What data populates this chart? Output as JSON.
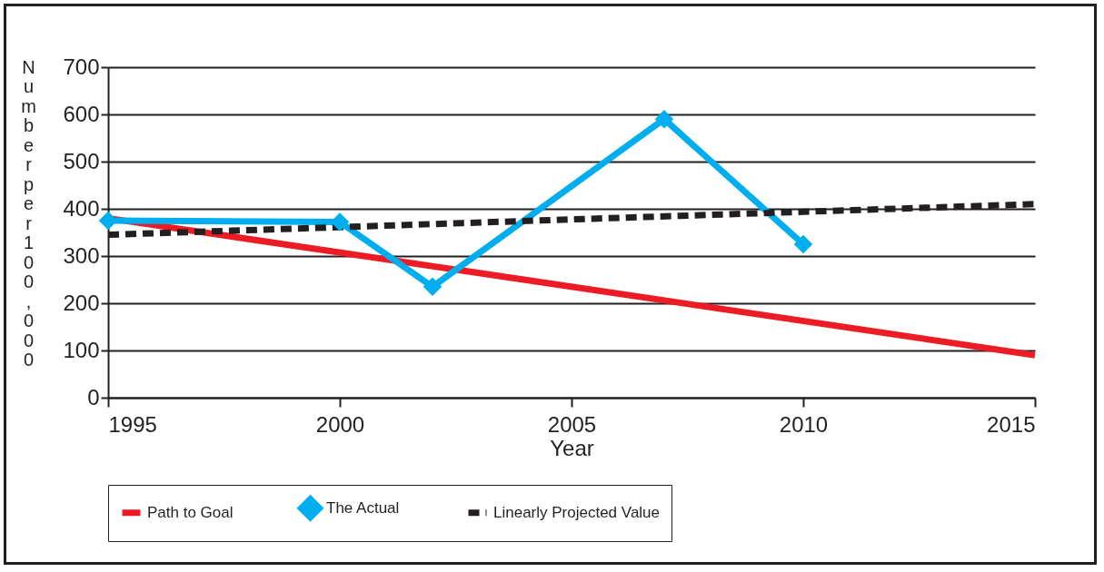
{
  "chart_data": {
    "type": "line",
    "xlabel": "Year",
    "ylabel": "Number per 100,000",
    "xlim": [
      1995,
      2015
    ],
    "xticks": [
      1995,
      2000,
      2005,
      2010,
      2015
    ],
    "ylim": [
      0,
      700
    ],
    "yticks": [
      0,
      100,
      200,
      300,
      400,
      500,
      600,
      700
    ],
    "grid": "y",
    "legend": "bottom",
    "series": [
      {
        "name": "Path to Goal",
        "color": "#ed1c24",
        "x": [
          1995,
          2015
        ],
        "values": [
          380,
          90
        ],
        "line_style": "solid",
        "marker": "none"
      },
      {
        "name": "The Actual",
        "color": "#00aeef",
        "x": [
          1995,
          2000,
          2002,
          2007,
          2010
        ],
        "values": [
          375,
          372,
          235,
          590,
          325
        ],
        "line_style": "solid",
        "marker": "diamond"
      },
      {
        "name": "Linearly Projected Value",
        "color": "#231f20",
        "x": [
          1995,
          2015
        ],
        "values": [
          345,
          410
        ],
        "line_style": "dashed",
        "marker": "none"
      }
    ]
  }
}
